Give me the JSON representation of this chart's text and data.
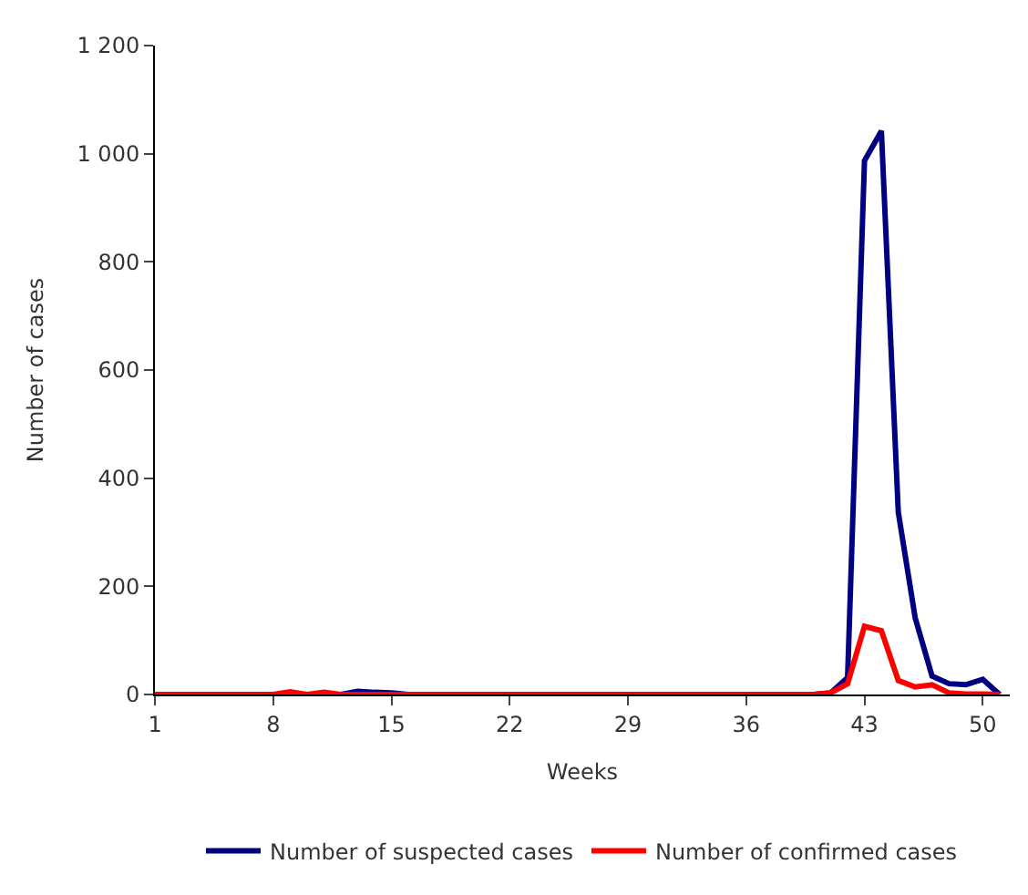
{
  "chart_data": {
    "type": "line",
    "xlabel": "Weeks",
    "ylabel": "Number of cases",
    "x": [
      1,
      2,
      3,
      4,
      5,
      6,
      7,
      8,
      9,
      10,
      11,
      12,
      13,
      14,
      15,
      16,
      17,
      18,
      19,
      20,
      21,
      22,
      23,
      24,
      25,
      26,
      27,
      28,
      29,
      30,
      31,
      32,
      33,
      34,
      35,
      36,
      37,
      38,
      39,
      40,
      41,
      42,
      43,
      44,
      45,
      46,
      47,
      48,
      49,
      50,
      51
    ],
    "series": [
      {
        "name": "Number of suspected cases",
        "color": "#000080",
        "values": [
          null,
          null,
          null,
          null,
          null,
          null,
          null,
          null,
          null,
          null,
          null,
          0,
          6,
          4,
          3,
          0,
          null,
          null,
          null,
          null,
          null,
          null,
          null,
          null,
          null,
          null,
          null,
          null,
          null,
          null,
          null,
          null,
          null,
          null,
          null,
          null,
          null,
          null,
          null,
          0,
          3,
          31,
          987,
          1042,
          337,
          142,
          34,
          20,
          18,
          28,
          0
        ]
      },
      {
        "name": "Number of confirmed cases",
        "color": "#ff0000",
        "values": [
          0,
          0,
          0,
          0,
          0,
          0,
          0,
          0,
          5,
          0,
          4,
          0,
          0,
          0,
          0,
          0,
          0,
          0,
          0,
          0,
          0,
          0,
          0,
          0,
          0,
          0,
          0,
          0,
          0,
          0,
          0,
          0,
          0,
          0,
          0,
          0,
          0,
          0,
          0,
          0,
          3,
          20,
          126,
          118,
          26,
          14,
          18,
          3,
          1,
          1,
          0
        ]
      }
    ],
    "xlim": [
      1,
      51.6
    ],
    "xticks": [
      1,
      8,
      15,
      22,
      29,
      36,
      43,
      50
    ],
    "ylim": [
      0,
      1200
    ],
    "yticks": [
      0,
      {
        "value": 200,
        "label": "200"
      },
      {
        "value": 400,
        "label": "400"
      },
      {
        "value": 600,
        "label": "600"
      },
      {
        "value": 800,
        "label": "800"
      },
      {
        "value": 1000,
        "label": "1 000"
      },
      {
        "value": 1200,
        "label": "1 200"
      }
    ],
    "legend": "bottom",
    "marker": "none",
    "line_style": "solid"
  }
}
